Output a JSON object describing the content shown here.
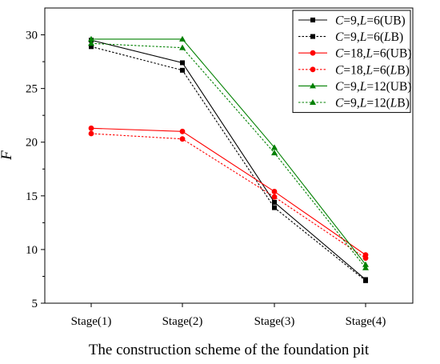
{
  "chart_data": {
    "type": "line",
    "title": "",
    "xlabel": "The construction scheme of the foundation pit",
    "ylabel": "F",
    "categories": [
      "Stage(1)",
      "Stage(2)",
      "Stage(3)",
      "Stage(4)"
    ],
    "ylim": [
      5,
      32.5
    ],
    "yticks": [
      5,
      10,
      15,
      20,
      25,
      30
    ],
    "grid": false,
    "legend_position": "top-right",
    "series": [
      {
        "name": "C=9,L=6(UB)",
        "values": [
          29.5,
          27.4,
          14.4,
          7.2
        ],
        "color": "#000000",
        "dash": "solid",
        "marker": "square"
      },
      {
        "name": "C=9,L=6(LB)",
        "values": [
          28.9,
          26.7,
          13.9,
          7.1
        ],
        "color": "#000000",
        "dash": "dotted",
        "marker": "square"
      },
      {
        "name": "C=18,L=6(UB)",
        "values": [
          21.3,
          21.0,
          15.4,
          9.5
        ],
        "color": "#ff0000",
        "dash": "solid",
        "marker": "circle"
      },
      {
        "name": "C=18,L=6(LB)",
        "values": [
          20.8,
          20.3,
          14.9,
          9.2
        ],
        "color": "#ff0000",
        "dash": "dotted",
        "marker": "circle"
      },
      {
        "name": "C=9,L=12(UB)",
        "values": [
          29.6,
          29.6,
          19.5,
          8.6
        ],
        "color": "#008000",
        "dash": "solid",
        "marker": "triangle"
      },
      {
        "name": "C=9,L=12(LB)",
        "values": [
          29.2,
          28.8,
          19.0,
          8.3
        ],
        "color": "#008000",
        "dash": "dotted",
        "marker": "triangle"
      }
    ]
  }
}
